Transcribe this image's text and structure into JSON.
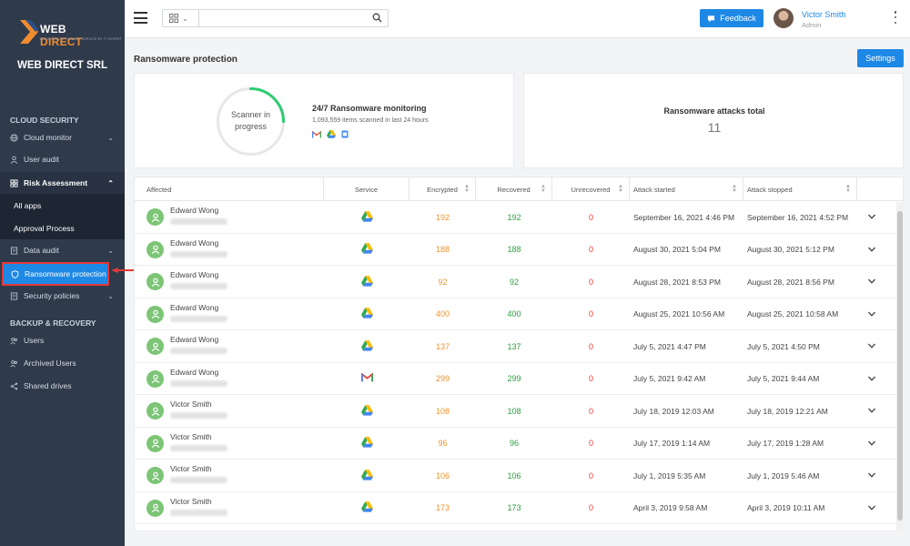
{
  "brand": {
    "logo_web": "WEB",
    "logo_direct": "DIRECT",
    "logo_tagline": "BUSINESS OUTSOURCE SERVICE BY IT EXPERT",
    "company": "WEB DIRECT SRL",
    "accent": "#1e88e5",
    "logo_orange": "#f08c2e"
  },
  "sidebar": {
    "section_cloud": "CLOUD SECURITY",
    "section_backup": "BACKUP & RECOVERY",
    "cloud_monitor": "Cloud monitor",
    "user_audit": "User audit",
    "risk_assessment": "Risk Assessment",
    "all_apps": "All apps",
    "approval_process": "Approval Process",
    "data_audit": "Data audit",
    "ransomware_protection": "Ransomware protection",
    "security_policies": "Security policies",
    "users": "Users",
    "archived_users": "Archived Users",
    "shared_drives": "Shared drives"
  },
  "topbar": {
    "search_placeholder": "",
    "feedback": "Feedback",
    "user_name": "Victor Smith",
    "user_role": "Admin"
  },
  "page": {
    "title": "Ransomware protection",
    "settings": "Settings"
  },
  "scanner": {
    "status_line1": "Scanner in",
    "status_line2": "progress",
    "title": "24/7 Ransomware monitoring",
    "subtitle": "1,093,559 items scanned in last 24 hours",
    "progress": 0.25
  },
  "attacks": {
    "label": "Ransomware attacks total",
    "value": "11"
  },
  "table": {
    "headers": {
      "affected": "Affected",
      "service": "Service",
      "encrypted": "Encrypted",
      "recovered": "Recovered",
      "unrecovered": "Unrecovered",
      "attack_started": "Attack started",
      "attack_stopped": "Attack stopped"
    },
    "rows": [
      {
        "name": "Edward Wong",
        "service": "google-drive-icon",
        "encrypted": "192",
        "recovered": "192",
        "unrecovered": "0",
        "started": "September 16, 2021 4:46 PM",
        "stopped": "September 16, 2021 4:52 PM"
      },
      {
        "name": "Edward Wong",
        "service": "google-drive-icon",
        "encrypted": "188",
        "recovered": "188",
        "unrecovered": "0",
        "started": "August 30, 2021 5:04 PM",
        "stopped": "August 30, 2021 5:12 PM"
      },
      {
        "name": "Edward Wong",
        "service": "google-drive-icon",
        "encrypted": "92",
        "recovered": "92",
        "unrecovered": "0",
        "started": "August 28, 2021 8:53 PM",
        "stopped": "August 28, 2021 8:56 PM"
      },
      {
        "name": "Edward Wong",
        "service": "google-drive-icon",
        "encrypted": "400",
        "recovered": "400",
        "unrecovered": "0",
        "started": "August 25, 2021 10:56 AM",
        "stopped": "August 25, 2021 10:58 AM"
      },
      {
        "name": "Edward Wong",
        "service": "google-drive-icon",
        "encrypted": "137",
        "recovered": "137",
        "unrecovered": "0",
        "started": "July 5, 2021 4:47 PM",
        "stopped": "July 5, 2021 4:50 PM"
      },
      {
        "name": "Edward Wong",
        "service": "gmail-icon",
        "encrypted": "299",
        "recovered": "299",
        "unrecovered": "0",
        "started": "July 5, 2021 9:42 AM",
        "stopped": "July 5, 2021 9:44 AM"
      },
      {
        "name": "Victor Smith",
        "service": "google-drive-icon",
        "encrypted": "108",
        "recovered": "108",
        "unrecovered": "0",
        "started": "July 18, 2019 12:03 AM",
        "stopped": "July 18, 2019 12:21 AM"
      },
      {
        "name": "Victor Smith",
        "service": "google-drive-icon",
        "encrypted": "96",
        "recovered": "96",
        "unrecovered": "0",
        "started": "July 17, 2019 1:14 AM",
        "stopped": "July 17, 2019 1:28 AM"
      },
      {
        "name": "Victor Smith",
        "service": "google-drive-icon",
        "encrypted": "106",
        "recovered": "106",
        "unrecovered": "0",
        "started": "July 1, 2019 5:35 AM",
        "stopped": "July 1, 2019 5:46 AM"
      },
      {
        "name": "Victor Smith",
        "service": "google-drive-icon",
        "encrypted": "173",
        "recovered": "173",
        "unrecovered": "0",
        "started": "April 3, 2019 9:58 AM",
        "stopped": "April 3, 2019 10:11 AM"
      }
    ]
  }
}
